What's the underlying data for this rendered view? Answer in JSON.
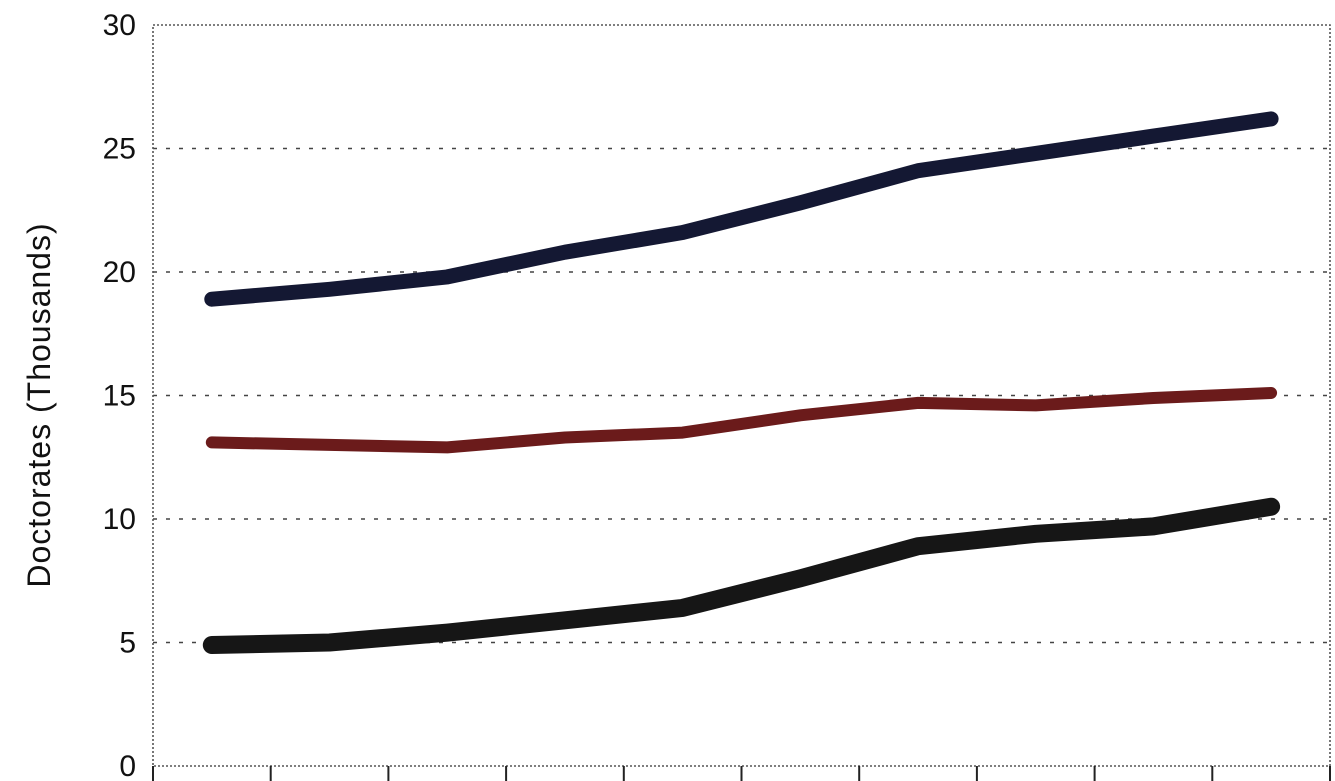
{
  "chart_data": {
    "type": "line",
    "ylabel": "Doctorates  (Thousands)",
    "ylim": [
      0,
      30
    ],
    "yticks": [
      0,
      5,
      10,
      15,
      20,
      25,
      30
    ],
    "x": [
      1,
      2,
      3,
      4,
      5,
      6,
      7,
      8,
      9,
      10
    ],
    "xlim": [
      0.5,
      10.5
    ],
    "grid": true,
    "series": [
      {
        "values": [
          18.9,
          19.3,
          19.8,
          20.8,
          21.6,
          22.8,
          24.1,
          24.8,
          25.5,
          26.2
        ],
        "color": "#141833"
      },
      {
        "values": [
          13.1,
          13.0,
          12.9,
          13.3,
          13.5,
          14.2,
          14.7,
          14.6,
          14.9,
          15.1
        ],
        "color": "#6b1b1b"
      },
      {
        "values": [
          4.9,
          5.0,
          5.4,
          5.9,
          6.4,
          7.6,
          8.9,
          9.4,
          9.7,
          10.5
        ],
        "color": "#161616"
      }
    ]
  }
}
